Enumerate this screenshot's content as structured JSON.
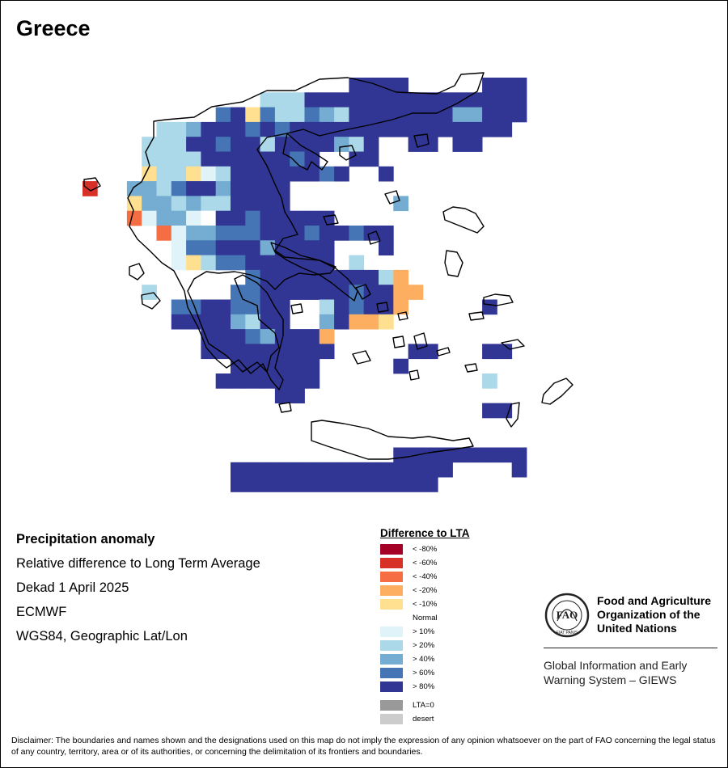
{
  "map": {
    "title": "Greece",
    "info": {
      "heading": "Precipitation anomaly",
      "line1": "Relative difference to Long Term Average",
      "line2": "Dekad 1 April 2025",
      "line3": "ECMWF",
      "line4": "WGS84, Geographic Lat/Lon"
    }
  },
  "legend": {
    "title": "Difference to LTA",
    "classes": [
      {
        "label": "< -80%",
        "color": "#a50026"
      },
      {
        "label": "< -60%",
        "color": "#d73027"
      },
      {
        "label": "< -40%",
        "color": "#f46d43"
      },
      {
        "label": "< -20%",
        "color": "#fdae61"
      },
      {
        "label": "< -10%",
        "color": "#fee090"
      },
      {
        "label": "Normal",
        "color": "#ffffff"
      },
      {
        "label": "> 10%",
        "color": "#e0f3f8"
      },
      {
        "label": "> 20%",
        "color": "#abd9e9"
      },
      {
        "label": "> 40%",
        "color": "#74add1"
      },
      {
        "label": "> 60%",
        "color": "#4575b4"
      },
      {
        "label": "> 80%",
        "color": "#313695"
      }
    ],
    "extra": [
      {
        "label": "LTA=0",
        "color": "#999999"
      },
      {
        "label": "desert",
        "color": "#cccccc"
      }
    ]
  },
  "org": {
    "name": "Food and Agriculture Organization of the United Nations",
    "logo_text": "FAO",
    "logo_motto": "FIAT PANIS",
    "system": "Global Information and Early Warning System – GIEWS"
  },
  "disclaimer": "Disclaimer: The boundaries and names shown and the designations used on this map do not imply the expression of any opinion whatsoever on the part of FAO concerning the legal status of any country, territory, area or of its authorities, or concerning the delimitation of its frontiers and boundaries."
}
